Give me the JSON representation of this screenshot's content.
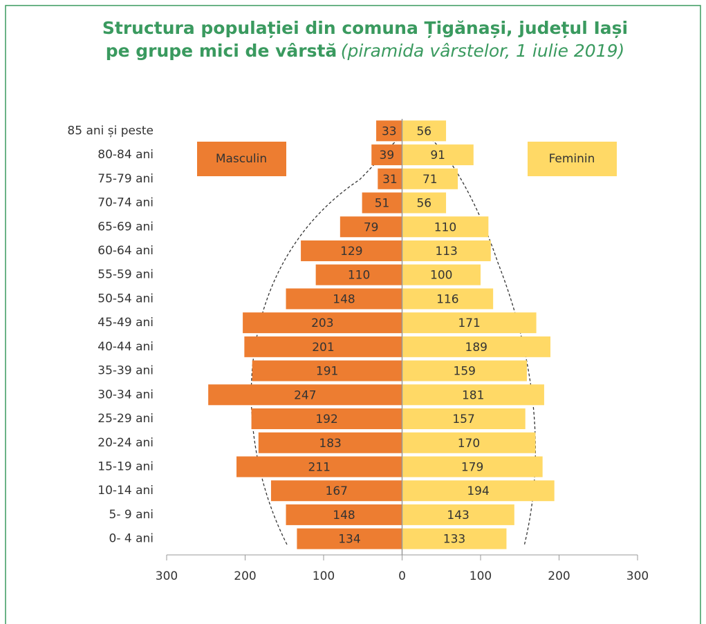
{
  "chart_data": {
    "type": "pyramid",
    "title_line1": "Structura populației din comuna Țigănași, județul Iași",
    "title_line2": "pe grupe mici de vârstă",
    "subtitle": "(piramida vârstelor, 1 iulie 2019)",
    "categories": [
      "85 ani și peste",
      "80-84 ani",
      "75-79 ani",
      "70-74 ani",
      "65-69 ani",
      "60-64 ani",
      "55-59 ani",
      "50-54 ani",
      "45-49 ani",
      "40-44 ani",
      "35-39 ani",
      "30-34 ani",
      "25-29 ani",
      "20-24 ani",
      "15-19 ani",
      "10-14 ani",
      "5- 9 ani",
      "0- 4 ani"
    ],
    "series": [
      {
        "name": "Masculin",
        "color": "#ed7d31",
        "side": "left",
        "values": [
          33,
          39,
          31,
          51,
          79,
          129,
          110,
          148,
          203,
          201,
          191,
          247,
          192,
          183,
          211,
          167,
          148,
          134
        ]
      },
      {
        "name": "Feminin",
        "color": "#ffd966",
        "side": "right",
        "values": [
          56,
          91,
          71,
          56,
          110,
          113,
          100,
          116,
          171,
          189,
          159,
          181,
          157,
          170,
          179,
          194,
          143,
          133
        ]
      }
    ],
    "xlim": [
      -300,
      300
    ],
    "xticks": [
      {
        "value": -300,
        "label": "300"
      },
      {
        "value": -200,
        "label": "200"
      },
      {
        "value": -100,
        "label": "100"
      },
      0,
      100,
      200,
      300
    ]
  }
}
